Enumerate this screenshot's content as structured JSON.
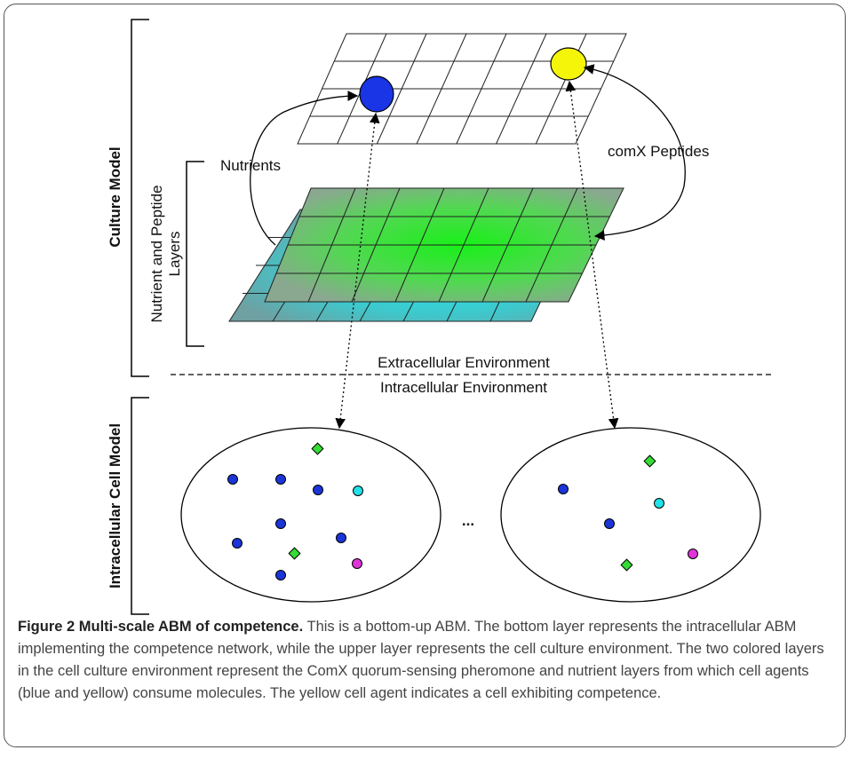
{
  "diagram": {
    "labels": {
      "culture_model": "Culture Model",
      "intracellular_cell_model": "Intracellular Cell Model",
      "nutrient_peptide_layers": [
        "Nutrient and Peptide",
        "Layers"
      ],
      "nutrients": "Nutrients",
      "comx_peptides": "comX Peptides",
      "extracellular": "Extracellular Environment",
      "intracellular": "Intracellular Environment",
      "ellipsis": "..."
    },
    "colors": {
      "cell_blue": "#1a35e6",
      "cell_yellow": "#f5f50a",
      "molecule_blue": "#1a35d8",
      "molecule_cyan": "#22e0e8",
      "molecule_green": "#33dd33",
      "molecule_magenta": "#e033d8",
      "nutrient_layer": "#1ee81e",
      "peptide_layer": "#22d8e0"
    }
  },
  "caption": {
    "title": "Figure 2 Multi-scale ABM of competence.",
    "text": " This is a bottom-up ABM. The bottom layer represents the intracellular ABM implementing the competence network, while the upper layer represents the cell culture environment. The two colored layers in the cell culture environment represent the ComX quorum-sensing pheromone and nutrient layers from which cell agents (blue and yellow) consume molecules. The yellow cell agent indicates a cell exhibiting competence."
  }
}
